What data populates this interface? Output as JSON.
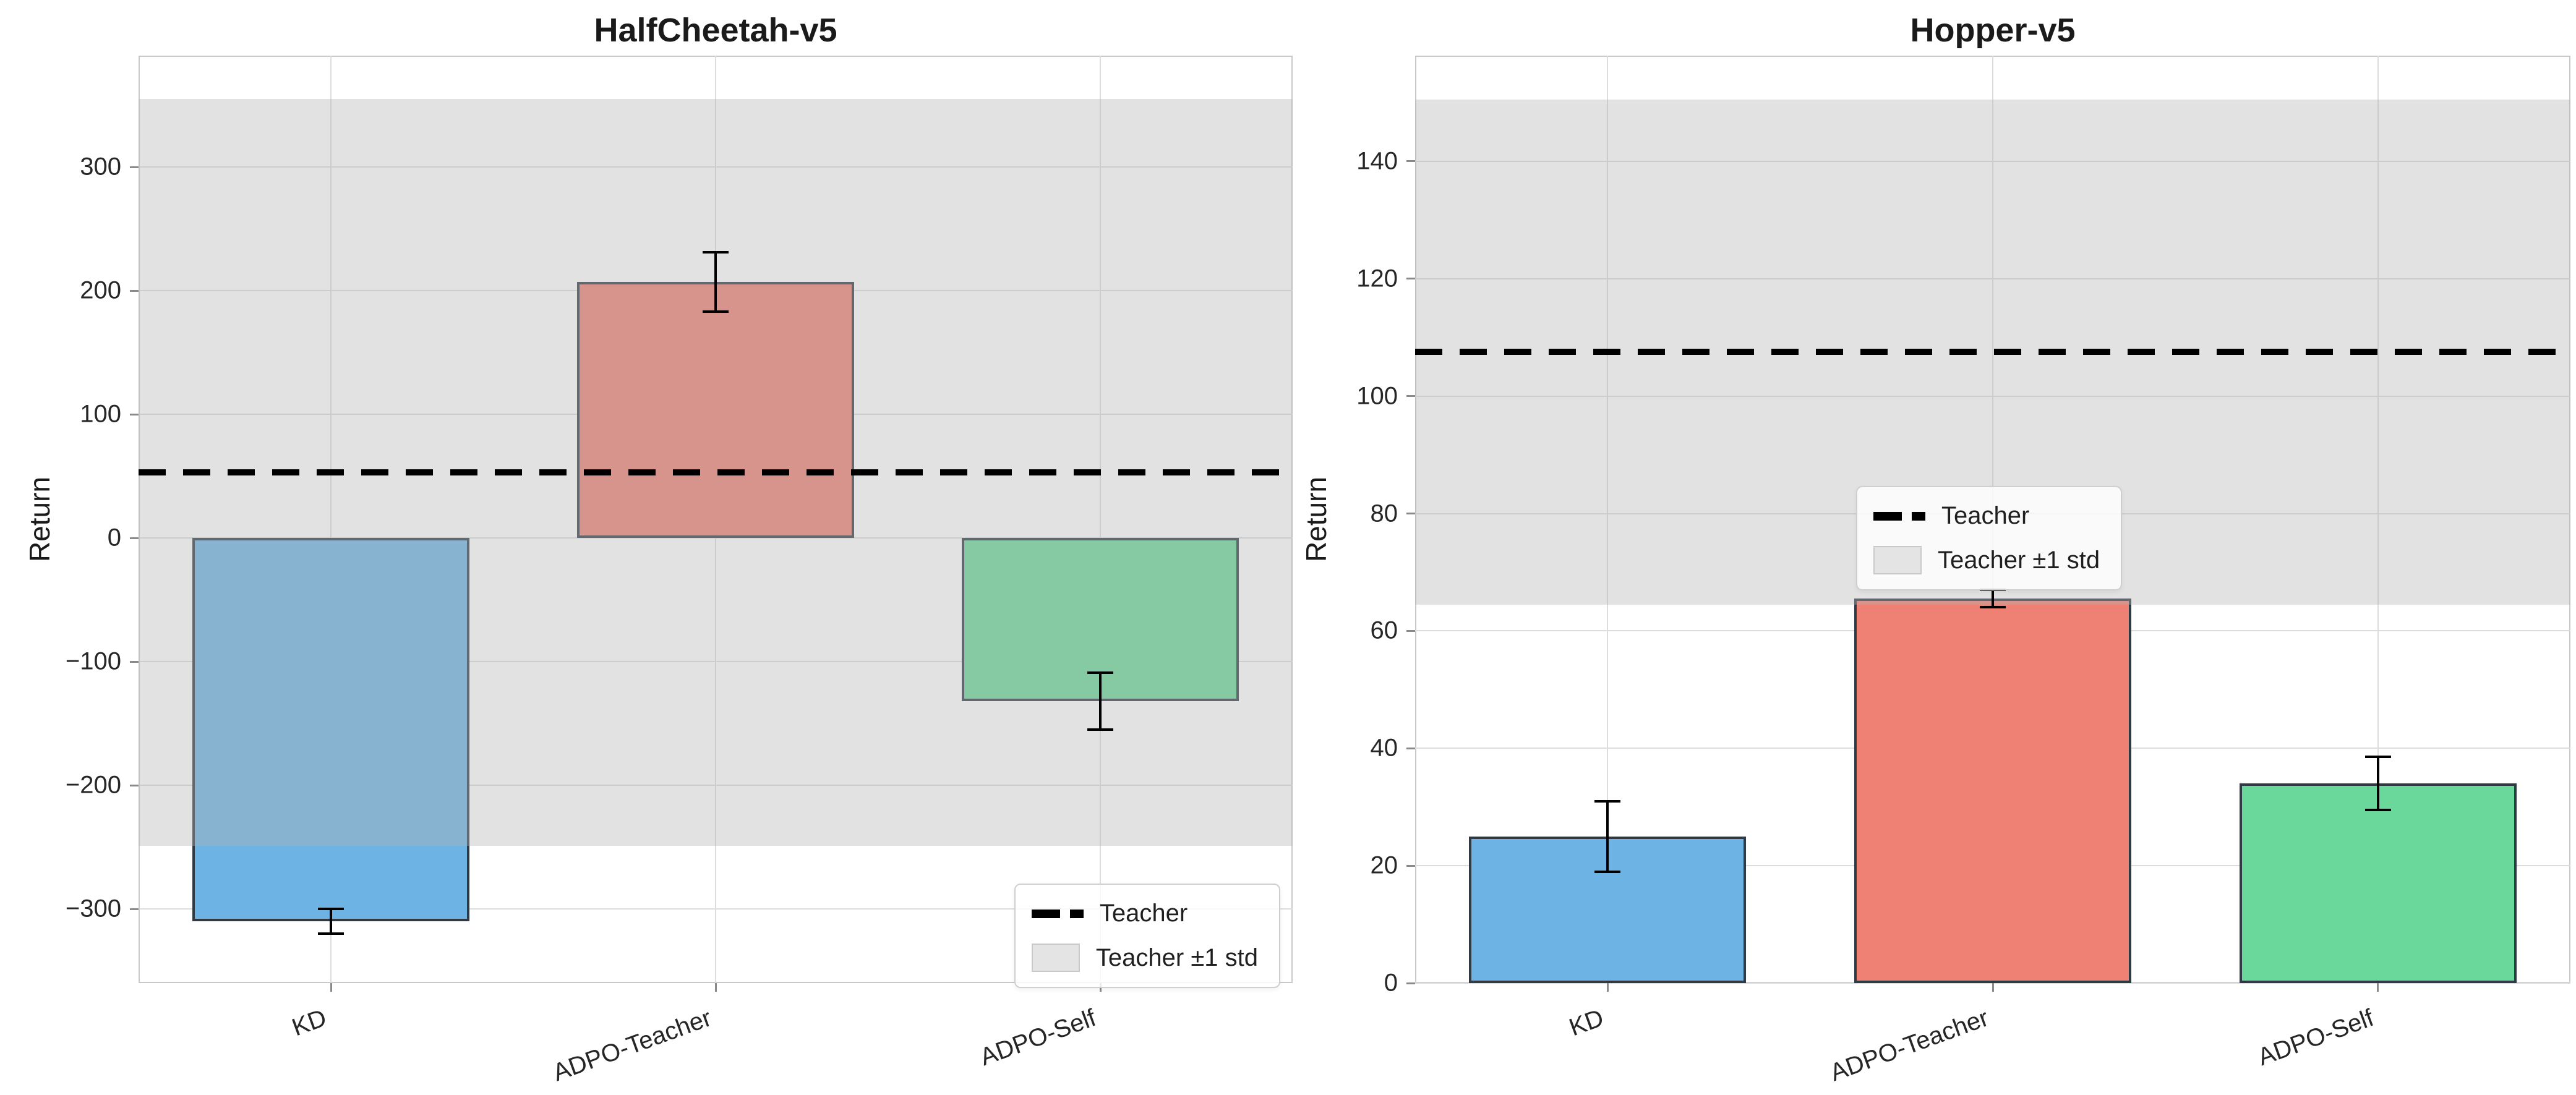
{
  "figure_title": "",
  "style": {
    "background": "#ffffff",
    "grid_color": "#dcdcdc",
    "spine_color": "#c9c9c9",
    "band_color": "rgba(180,180,180,0.38)",
    "bar_edge_color": "#2f3a44",
    "error_color": "#000000",
    "teacher_line_color": "#000000",
    "text_color": "#1a1a1a"
  },
  "chart_data": [
    {
      "type": "bar",
      "title": "HalfCheetah-v5",
      "ylabel": "Return",
      "xlabel": "",
      "categories": [
        "KD",
        "ADPO-Teacher",
        "ADPO-Self"
      ],
      "values": [
        -310,
        207,
        -132
      ],
      "errors": [
        10,
        24,
        23
      ],
      "bar_colors": [
        "#6db4e4",
        "#ee8174",
        "#6bd89b"
      ],
      "teacher_mean": 53,
      "teacher_std": 302,
      "teacher_band": [
        -249,
        355
      ],
      "ylim": [
        -360,
        390
      ],
      "yticks": [
        300,
        200,
        100,
        0,
        -100,
        -200,
        -300
      ],
      "ytick_labels": [
        "300",
        "200",
        "100",
        "0",
        "−100",
        "−200",
        "−300"
      ],
      "grid": true,
      "legend_entries": [
        {
          "label": "Teacher",
          "marker": "dashed-line"
        },
        {
          "label": "Teacher ±1 std",
          "marker": "patch"
        }
      ],
      "legend_location": "lower right"
    },
    {
      "type": "bar",
      "title": "Hopper-v5",
      "ylabel": "Return",
      "xlabel": "",
      "categories": [
        "KD",
        "ADPO-Teacher",
        "ADPO-Self"
      ],
      "values": [
        25,
        65.5,
        34
      ],
      "errors": [
        6,
        1.5,
        4.5
      ],
      "bar_colors": [
        "#6db4e4",
        "#ee8174",
        "#6bd89b"
      ],
      "teacher_mean": 107.5,
      "teacher_std": 43,
      "teacher_band": [
        64.5,
        150.5
      ],
      "ylim": [
        0,
        158
      ],
      "yticks": [
        0,
        20,
        40,
        60,
        80,
        100,
        120,
        140
      ],
      "ytick_labels": [
        "0",
        "20",
        "40",
        "60",
        "80",
        "100",
        "120",
        "140"
      ],
      "grid": true,
      "legend_entries": [
        {
          "label": "Teacher",
          "marker": "dashed-line"
        },
        {
          "label": "Teacher ±1 std",
          "marker": "patch"
        }
      ],
      "legend_location": "center"
    }
  ]
}
